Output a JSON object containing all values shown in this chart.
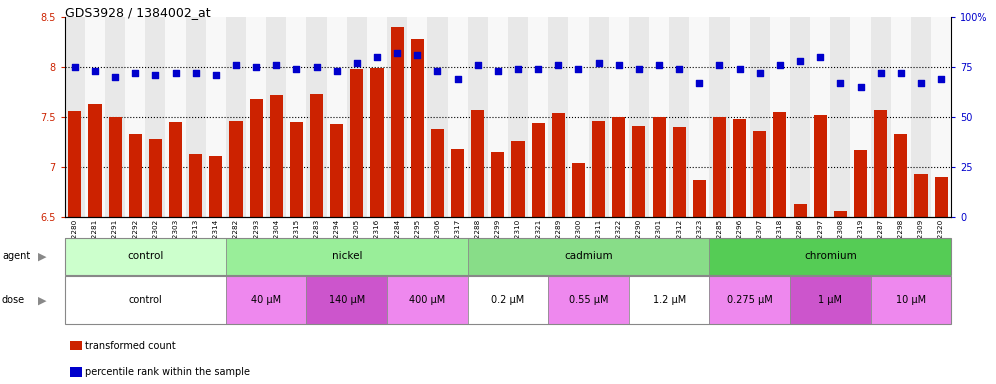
{
  "title": "GDS3928 / 1384002_at",
  "samples": [
    "GSM782280",
    "GSM782281",
    "GSM782291",
    "GSM782292",
    "GSM782302",
    "GSM782303",
    "GSM782313",
    "GSM782314",
    "GSM782282",
    "GSM782293",
    "GSM782304",
    "GSM782315",
    "GSM782283",
    "GSM782294",
    "GSM782305",
    "GSM782316",
    "GSM782284",
    "GSM782295",
    "GSM782306",
    "GSM782317",
    "GSM782288",
    "GSM782299",
    "GSM782310",
    "GSM782321",
    "GSM782289",
    "GSM782300",
    "GSM782311",
    "GSM782322",
    "GSM782290",
    "GSM782301",
    "GSM782312",
    "GSM782323",
    "GSM782285",
    "GSM782296",
    "GSM782307",
    "GSM782318",
    "GSM782286",
    "GSM782297",
    "GSM782308",
    "GSM782319",
    "GSM782287",
    "GSM782298",
    "GSM782309",
    "GSM782320"
  ],
  "bar_values": [
    7.56,
    7.63,
    7.5,
    7.33,
    7.28,
    7.45,
    7.13,
    7.11,
    7.46,
    7.68,
    7.72,
    7.45,
    7.73,
    7.43,
    7.98,
    7.99,
    8.4,
    8.28,
    7.38,
    7.18,
    7.57,
    7.15,
    7.26,
    7.44,
    7.54,
    7.04,
    7.46,
    7.5,
    7.41,
    7.5,
    7.4,
    6.87,
    7.5,
    7.48,
    7.36,
    7.55,
    6.63,
    7.52,
    6.56,
    7.17,
    7.57,
    7.33,
    6.93,
    6.9
  ],
  "percentile_values": [
    75,
    73,
    70,
    72,
    71,
    72,
    72,
    71,
    76,
    75,
    76,
    74,
    75,
    73,
    77,
    80,
    82,
    81,
    73,
    69,
    76,
    73,
    74,
    74,
    76,
    74,
    77,
    76,
    74,
    76,
    74,
    67,
    76,
    74,
    72,
    76,
    78,
    80,
    67,
    65,
    72,
    72,
    67,
    69
  ],
  "ylim_left": [
    6.5,
    8.5
  ],
  "ylim_right": [
    0,
    100
  ],
  "yticks_left": [
    6.5,
    7.0,
    7.5,
    8.0,
    8.5
  ],
  "yticks_right": [
    0,
    25,
    50,
    75,
    100
  ],
  "bar_color": "#cc2200",
  "dot_color": "#0000cc",
  "agent_groups": [
    {
      "label": "control",
      "start": 0,
      "end": 8,
      "color": "#ccffcc"
    },
    {
      "label": "nickel",
      "start": 8,
      "end": 20,
      "color": "#99ee99"
    },
    {
      "label": "cadmium",
      "start": 20,
      "end": 32,
      "color": "#88dd88"
    },
    {
      "label": "chromium",
      "start": 32,
      "end": 44,
      "color": "#55cc55"
    }
  ],
  "dose_groups": [
    {
      "label": "control",
      "start": 0,
      "end": 8,
      "color": "#ffffff"
    },
    {
      "label": "40 μM",
      "start": 8,
      "end": 12,
      "color": "#ee88ee"
    },
    {
      "label": "140 μM",
      "start": 12,
      "end": 16,
      "color": "#cc55cc"
    },
    {
      "label": "400 μM",
      "start": 16,
      "end": 20,
      "color": "#ee88ee"
    },
    {
      "label": "0.2 μM",
      "start": 20,
      "end": 24,
      "color": "#ffffff"
    },
    {
      "label": "0.55 μM",
      "start": 24,
      "end": 28,
      "color": "#ee88ee"
    },
    {
      "label": "1.2 μM",
      "start": 28,
      "end": 32,
      "color": "#ffffff"
    },
    {
      "label": "0.275 μM",
      "start": 32,
      "end": 36,
      "color": "#ee88ee"
    },
    {
      "label": "1 μM",
      "start": 36,
      "end": 40,
      "color": "#cc55cc"
    },
    {
      "label": "10 μM",
      "start": 40,
      "end": 44,
      "color": "#ee88ee"
    }
  ],
  "legend_items": [
    {
      "label": "transformed count",
      "color": "#cc2200"
    },
    {
      "label": "percentile rank within the sample",
      "color": "#0000cc"
    }
  ],
  "bg_colors": [
    "#e8e8e8",
    "#f8f8f8"
  ]
}
